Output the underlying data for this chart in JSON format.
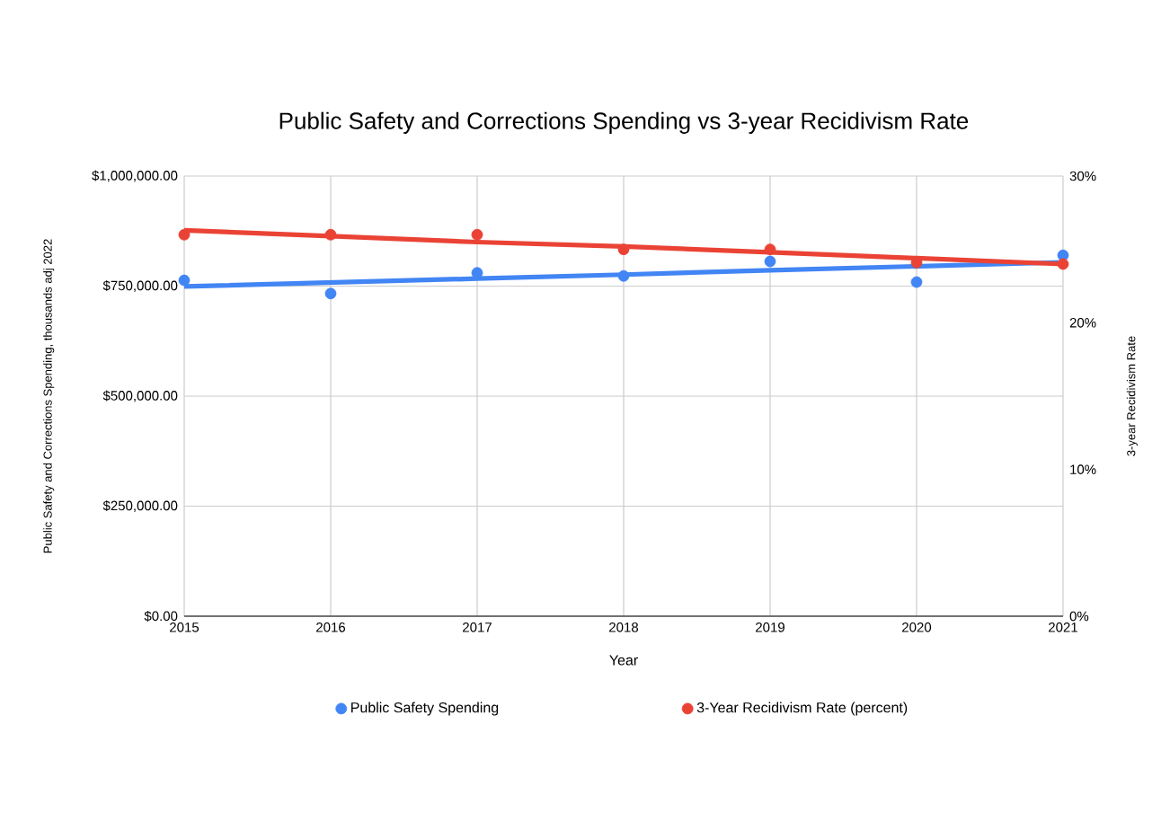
{
  "chart_data": {
    "type": "scatter",
    "title": "Public Safety and Corrections Spending vs 3-year Recidivism Rate",
    "xlabel": "Year",
    "ylabel": "Public Safety and Corrections Spending, thousands adj 2022",
    "y2label": "3-year Recidivism Rate",
    "x": [
      2015,
      2016,
      2017,
      2018,
      2019,
      2020,
      2021
    ],
    "xlim": [
      2015,
      2021
    ],
    "xticks": [
      2015,
      2016,
      2017,
      2018,
      2019,
      2020,
      2021
    ],
    "ylim": [
      0,
      1000000
    ],
    "yticks": [
      {
        "value": 0,
        "label": "$0.00"
      },
      {
        "value": 250000,
        "label": "$250,000.00"
      },
      {
        "value": 500000,
        "label": "$500,000.00"
      },
      {
        "value": 750000,
        "label": "$750,000.00"
      },
      {
        "value": 1000000,
        "label": "$1,000,000.00"
      }
    ],
    "y2lim": [
      0,
      30
    ],
    "y2ticks": [
      {
        "value": 0,
        "label": "0%"
      },
      {
        "value": 10,
        "label": "10%"
      },
      {
        "value": 20,
        "label": "20%"
      },
      {
        "value": 30,
        "label": "30%"
      }
    ],
    "grid": true,
    "legend": "bottom",
    "series": [
      {
        "name": "Public Safety Spending",
        "color": "#4285f4",
        "axis": "y",
        "marker": "circle",
        "values": [
          763000,
          733000,
          780000,
          773000,
          806000,
          759000,
          820000
        ]
      },
      {
        "name": "3-Year Recidivism Rate (percent)",
        "color": "#ea4335",
        "axis": "y2",
        "marker": "circle",
        "values": [
          26.0,
          26.0,
          26.0,
          25.0,
          25.0,
          24.1,
          24.0
        ]
      },
      {
        "type": "line",
        "color": "#4285f4",
        "axis": "y",
        "values": [
          749000,
          758000,
          767000,
          776000,
          786000,
          795000,
          804000
        ]
      },
      {
        "type": "line",
        "color": "#ea4335",
        "axis": "y2",
        "values": [
          26.3,
          25.9,
          25.5,
          25.2,
          24.8,
          24.4,
          24.0
        ]
      }
    ]
  }
}
